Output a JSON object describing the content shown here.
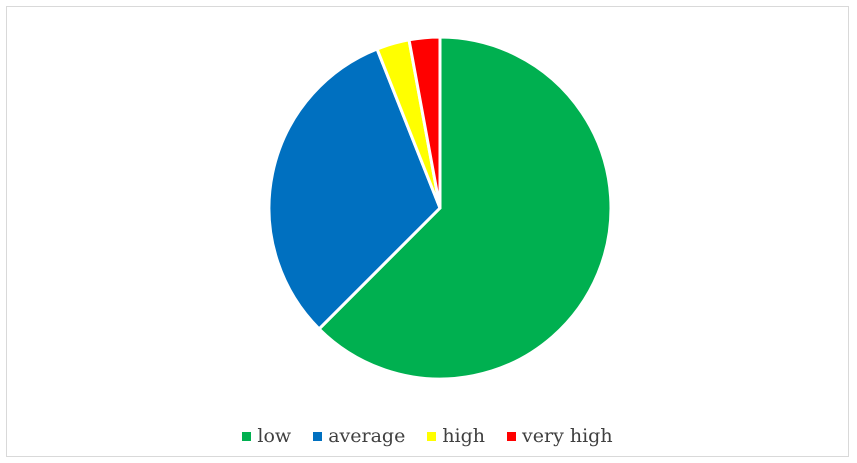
{
  "chart_data": {
    "type": "pie",
    "title": "",
    "categories": [
      "low",
      "average",
      "high",
      "very high"
    ],
    "values": [
      62.5,
      31.5,
      3.1,
      2.9
    ],
    "colors": [
      "#00b050",
      "#0070c0",
      "#ffff00",
      "#ff0000"
    ],
    "legend_position": "bottom",
    "start_angle_deg": 0,
    "direction": "clockwise"
  }
}
